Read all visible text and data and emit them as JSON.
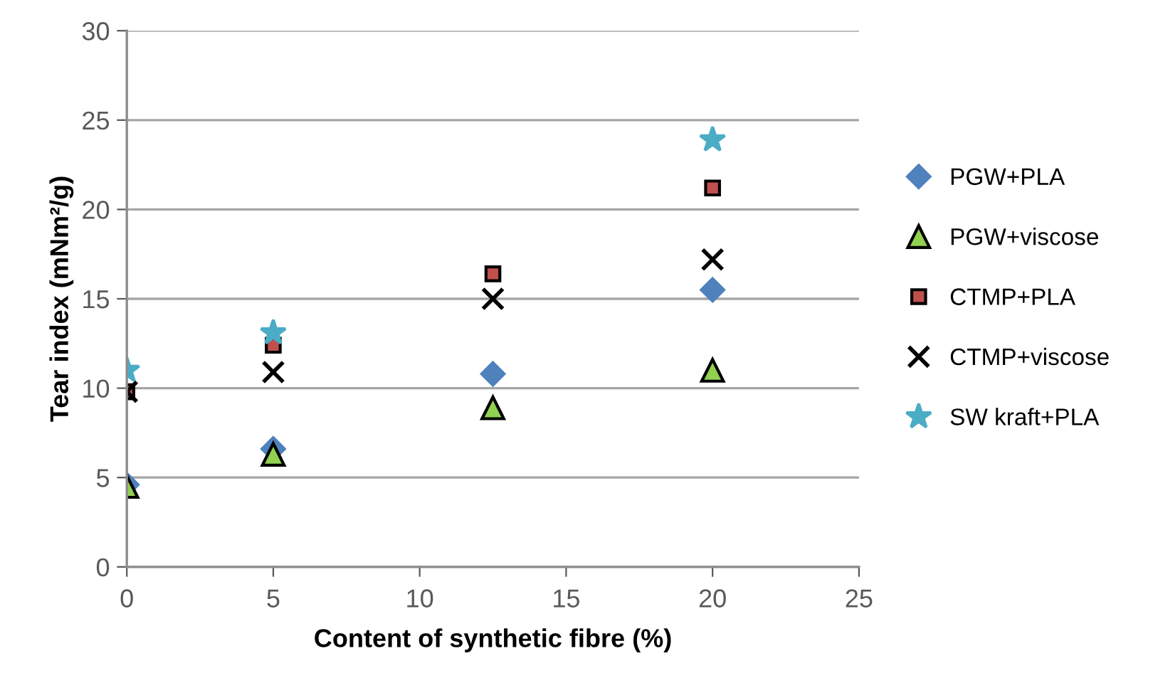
{
  "chart_data": {
    "type": "scatter",
    "xlabel": "Content of synthetic fibre (%)",
    "ylabel": "Tear index (mNm²/g)",
    "x": [
      0,
      5,
      12.5,
      20
    ],
    "series": [
      {
        "name": "PGW+PLA",
        "color": "#4f81bd",
        "marker": "diamond",
        "values": [
          4.6,
          6.6,
          10.8,
          15.5
        ]
      },
      {
        "name": "PGW+viscose",
        "color": "#92d050",
        "marker": "triangle",
        "values": [
          4.5,
          6.3,
          8.9,
          11.0
        ]
      },
      {
        "name": "CTMP+PLA",
        "color": "#c0504d",
        "marker": "square",
        "values": [
          9.8,
          12.4,
          16.4,
          21.2
        ]
      },
      {
        "name": "CTMP+viscose",
        "color": "#000000",
        "marker": "cross",
        "values": [
          9.8,
          10.9,
          15.0,
          17.2
        ]
      },
      {
        "name": "SW kraft+PLA",
        "color": "#4bacc6",
        "marker": "star",
        "values": [
          11.0,
          13.1,
          null,
          23.9
        ]
      }
    ],
    "xlim": [
      0,
      25
    ],
    "xticks": [
      0,
      5,
      10,
      15,
      20,
      25
    ],
    "ylim": [
      0,
      30
    ],
    "yticks": [
      0,
      5,
      10,
      15,
      20,
      25,
      30
    ],
    "grid": "y",
    "legend": "right"
  }
}
